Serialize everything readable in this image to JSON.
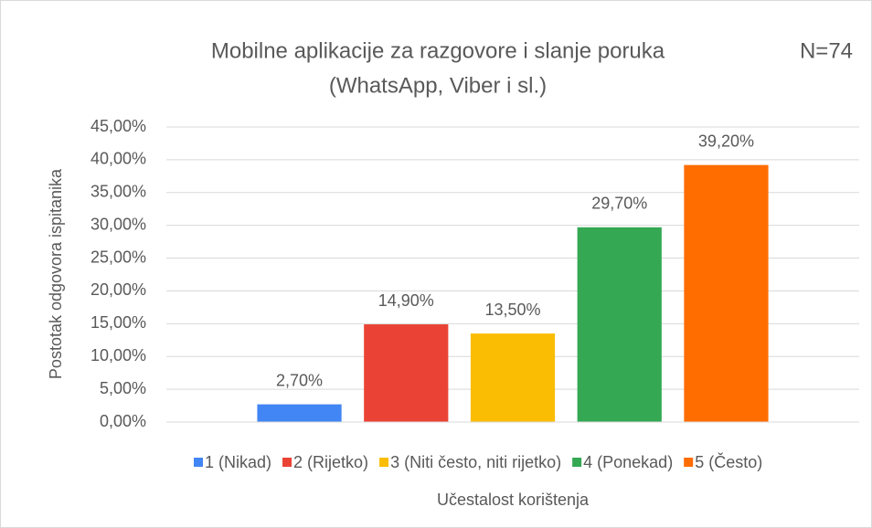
{
  "chart_data": {
    "type": "bar",
    "title": [
      "Mobilne aplikacije za razgovore i slanje poruka",
      "(WhatsApp, Viber i sl.)"
    ],
    "annotation": "N=74",
    "x_label": "Učestalost korištenja",
    "y_label": "Postotak odgovora ispitanika",
    "categories": [
      null
    ],
    "series": [
      {
        "name": "1 (Nikad)",
        "color": "#4285f4",
        "values": [
          2.7
        ],
        "value_labels": [
          "2,70%"
        ]
      },
      {
        "name": "2 (Rijetko)",
        "color": "#ea4335",
        "values": [
          14.9
        ],
        "value_labels": [
          "14,90%"
        ]
      },
      {
        "name": "3 (Niti često, niti rijetko)",
        "color": "#fbbc04",
        "values": [
          13.5
        ],
        "value_labels": [
          "13,50%"
        ]
      },
      {
        "name": "4 (Ponekad)",
        "color": "#34a853",
        "values": [
          29.7
        ],
        "value_labels": [
          "29,70%"
        ]
      },
      {
        "name": "5 (Često)",
        "color": "#ff6d01",
        "values": [
          39.2
        ],
        "value_labels": [
          "39,20%"
        ]
      }
    ],
    "ylim": [
      0,
      45
    ],
    "yticks": [
      {
        "value": 0,
        "label": "0,00%"
      },
      {
        "value": 5,
        "label": "5,00%"
      },
      {
        "value": 10,
        "label": "10,00%"
      },
      {
        "value": 15,
        "label": "15,00%"
      },
      {
        "value": 20,
        "label": "20,00%"
      },
      {
        "value": 25,
        "label": "25,00%"
      },
      {
        "value": 30,
        "label": "30,00%"
      },
      {
        "value": 35,
        "label": "35,00%"
      },
      {
        "value": 40,
        "label": "40,00%"
      },
      {
        "value": 45,
        "label": "45,00%"
      }
    ],
    "grid": true,
    "legend": "bottom"
  }
}
